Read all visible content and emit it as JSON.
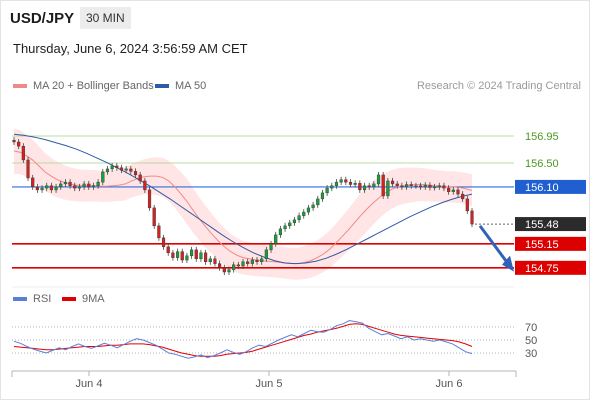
{
  "header": {
    "symbol": "USD/JPY",
    "timeframe": "30 MIN",
    "datetime": "Thursday, June 6, 2024 3:56:59 AM CET"
  },
  "legend": {
    "ma20": {
      "label": "MA 20 + Bollinger Bands",
      "color": "#f08a8a"
    },
    "ma50": {
      "label": "MA 50",
      "color": "#2f5aa8"
    },
    "credit": "Research © 2024 Trading Central"
  },
  "rsi_legend": {
    "rsi": {
      "label": "RSI",
      "color": "#5b7fd8"
    },
    "ma9": {
      "label": "9MA",
      "color": "#e00000"
    }
  },
  "chart_data": [
    {
      "type": "candlestick",
      "name": "price",
      "ylim": [
        154.48,
        157.25
      ],
      "x_ticks": [
        "Jun 4",
        "Jun 5",
        "Jun 6"
      ],
      "levels": [
        {
          "value": 156.95,
          "label": "156.95",
          "kind": "resistance-2"
        },
        {
          "value": 156.5,
          "label": "156.50",
          "kind": "resistance-1"
        },
        {
          "value": 156.1,
          "label": "156.10",
          "kind": "pivot"
        },
        {
          "value": 155.48,
          "label": "155.48",
          "kind": "last-price"
        },
        {
          "value": 155.15,
          "label": "155.15",
          "kind": "support-1"
        },
        {
          "value": 154.75,
          "label": "154.75",
          "kind": "support-2"
        }
      ],
      "closes": [
        156.85,
        156.78,
        156.55,
        156.25,
        156.1,
        156.05,
        156.08,
        156.12,
        156.05,
        156.1,
        156.15,
        156.18,
        156.12,
        156.08,
        156.1,
        156.15,
        156.1,
        156.12,
        156.18,
        156.35,
        156.4,
        156.45,
        156.42,
        156.38,
        156.4,
        156.36,
        156.3,
        156.2,
        156.05,
        155.75,
        155.45,
        155.25,
        155.1,
        155.0,
        154.92,
        155.02,
        154.88,
        154.95,
        155.05,
        154.9,
        155.0,
        154.85,
        154.9,
        154.82,
        154.75,
        154.68,
        154.72,
        154.8,
        154.78,
        154.85,
        154.82,
        154.88,
        154.85,
        154.9,
        155.05,
        155.15,
        155.3,
        155.4,
        155.45,
        155.5,
        155.55,
        155.62,
        155.68,
        155.75,
        155.8,
        155.9,
        156.0,
        156.08,
        156.12,
        156.18,
        156.22,
        156.18,
        156.14,
        156.16,
        156.05,
        156.12,
        156.1,
        156.15,
        156.3,
        155.95,
        156.2,
        156.15,
        156.12,
        156.1,
        156.14,
        156.12,
        156.12,
        156.1,
        156.13,
        156.09,
        156.1,
        156.12,
        156.08,
        156.02,
        156.05,
        155.98,
        155.9,
        155.7,
        155.48
      ],
      "ma20": [
        156.7,
        156.68,
        156.62,
        156.55,
        156.45,
        156.35,
        156.28,
        156.22,
        156.18,
        156.15,
        156.13,
        156.12,
        156.12,
        156.12,
        156.11,
        156.11,
        156.12,
        156.13,
        156.15,
        156.2,
        156.24,
        156.27,
        156.28,
        156.28,
        156.26,
        156.2,
        156.1,
        155.98,
        155.85,
        155.7,
        155.56,
        155.43,
        155.31,
        155.2,
        155.1,
        155.02,
        154.96,
        154.92,
        154.9,
        154.88,
        154.87,
        154.86,
        154.85,
        154.84,
        154.83,
        154.82,
        154.82,
        154.84,
        154.87,
        154.92,
        154.98,
        155.06,
        155.16,
        155.27,
        155.38,
        155.5,
        155.62,
        155.73,
        155.83,
        155.92,
        156.0,
        156.06,
        156.1,
        156.12,
        156.13,
        156.14,
        156.14,
        156.13,
        156.12,
        156.11,
        156.1,
        156.1,
        156.09,
        156.07,
        156.04
      ],
      "ma50": [
        156.98,
        156.96,
        156.93,
        156.89,
        156.84,
        156.79,
        156.73,
        156.66,
        156.58,
        156.5,
        156.41,
        156.32,
        156.22,
        156.12,
        156.01,
        155.9,
        155.78,
        155.66,
        155.54,
        155.42,
        155.3,
        155.19,
        155.09,
        155.0,
        154.93,
        154.87,
        154.83,
        154.82,
        154.83,
        154.86,
        154.91,
        154.98,
        155.06,
        155.15,
        155.24,
        155.33,
        155.42,
        155.51,
        155.6,
        155.68,
        155.76,
        155.83,
        155.89,
        155.94,
        155.98
      ]
    },
    {
      "type": "line",
      "name": "rsi",
      "ylim": [
        10,
        90
      ],
      "y_ticks": [
        30,
        50,
        70
      ],
      "rsi": [
        48,
        45,
        40,
        36,
        33,
        30,
        34,
        38,
        35,
        40,
        44,
        40,
        37,
        41,
        45,
        42,
        38,
        43,
        48,
        52,
        50,
        46,
        42,
        36,
        30,
        28,
        25,
        22,
        24,
        27,
        23,
        26,
        30,
        35,
        31,
        28,
        32,
        38,
        42,
        40,
        45,
        50,
        54,
        58,
        55,
        60,
        65,
        63,
        62,
        66,
        72,
        75,
        80,
        78,
        76,
        68,
        63,
        58,
        60,
        56,
        52,
        55,
        50,
        52,
        50,
        48,
        50,
        47,
        44,
        38,
        32,
        29
      ],
      "ma9": [
        40,
        39,
        38,
        37,
        36,
        35,
        35,
        36,
        37,
        38,
        39,
        40,
        40,
        40,
        41,
        42,
        42,
        43,
        44,
        44,
        44,
        43,
        41,
        39,
        36,
        33,
        30,
        28,
        26,
        25,
        25,
        25,
        26,
        28,
        29,
        30,
        31,
        33,
        36,
        39,
        42,
        45,
        48,
        51,
        54,
        57,
        59,
        62,
        64,
        66,
        68,
        71,
        74,
        75,
        74,
        71,
        68,
        65,
        62,
        59,
        57,
        56,
        55,
        54,
        53,
        52,
        51,
        50,
        49,
        47,
        44,
        40
      ]
    }
  ]
}
